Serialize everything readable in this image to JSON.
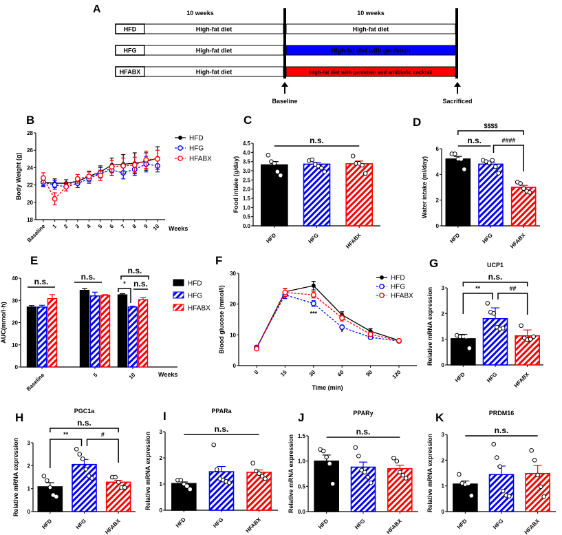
{
  "colors": {
    "HFD": "#000000",
    "HFG": "#0000ff",
    "HFABX": "#ff0000"
  },
  "panelA": {
    "label": "A",
    "period_labels": [
      "10 weeks",
      "10 weeks"
    ],
    "rows": [
      {
        "group": "HFD",
        "phase1": "High-fat diet",
        "phase2": "High-fat diet",
        "fill": "#ffffff",
        "text_color": "#000000"
      },
      {
        "group": "HFG",
        "phase1": "High-fat diet",
        "phase2": "High-fat diet with genistein",
        "fill": "#0000ff",
        "text_color": "#ffffff"
      },
      {
        "group": "HFABX",
        "phase1": "High-fat diet",
        "phase2": "High-fat diet with genistein and antibiotic cocktail",
        "fill": "#ff0000",
        "text_color": "#ffffff"
      }
    ],
    "markers": [
      "Baseline",
      "Sacrificed"
    ]
  },
  "chart_data": [
    {
      "panel": "B",
      "type": "line",
      "title": "",
      "xlabel": "Weeks",
      "ylabel": "Body Weight (g)",
      "categories": [
        "Baseline",
        "1",
        "2",
        "3",
        "4",
        "5",
        "6",
        "7",
        "8",
        "9",
        "10"
      ],
      "ylim": [
        18,
        28
      ],
      "yticks": [
        "18",
        "20",
        "22",
        "24",
        "26",
        "28"
      ],
      "legend": "right",
      "series": [
        {
          "name": "HFD",
          "values": [
            22.3,
            22.2,
            22.2,
            22.4,
            23.0,
            23.5,
            24.3,
            24.4,
            24.5,
            24.7,
            25.1
          ],
          "err": [
            0.4,
            0.5,
            0.4,
            0.4,
            0.5,
            0.7,
            0.8,
            1.1,
            1.2,
            1.0,
            1.3
          ]
        },
        {
          "name": "HFG",
          "values": [
            22.3,
            22.0,
            21.8,
            22.2,
            22.7,
            23.4,
            23.7,
            23.4,
            23.8,
            24.4,
            24.2
          ],
          "err": [
            0.5,
            0.5,
            0.5,
            0.5,
            0.5,
            0.6,
            0.6,
            0.7,
            0.7,
            0.9,
            0.7
          ]
        },
        {
          "name": "HFABX",
          "values": [
            22.8,
            20.4,
            21.8,
            22.7,
            23.0,
            23.1,
            24.1,
            24.2,
            24.3,
            24.9,
            25.0
          ],
          "err": [
            0.6,
            0.7,
            0.5,
            0.5,
            0.6,
            0.6,
            0.7,
            0.9,
            0.9,
            1.0,
            1.0
          ]
        }
      ]
    },
    {
      "panel": "C",
      "type": "bar",
      "title": "",
      "ylabel": "Food intake (g/day)",
      "xlabel": "",
      "categories": [
        "HFD",
        "HFG",
        "HFABX"
      ],
      "ylim": [
        0,
        4.5
      ],
      "yticks": [
        "0.0",
        "0.5",
        "1.0",
        "1.5",
        "2.0",
        "2.5",
        "3.0",
        "3.5",
        "4.0",
        "4.5"
      ],
      "values": [
        3.32,
        3.36,
        3.38
      ],
      "err": [
        0.18,
        0.1,
        0.15
      ],
      "points": [
        [
          3.85,
          3.5,
          3.4,
          2.95,
          2.75
        ],
        [
          3.55,
          3.6,
          3.35,
          3.25,
          3.15,
          2.95
        ],
        [
          3.8,
          3.4,
          3.4,
          3.3,
          2.85
        ]
      ],
      "annotations": [
        {
          "from": 0,
          "to": 2,
          "text": "n.s.",
          "type": "line"
        }
      ]
    },
    {
      "panel": "D",
      "type": "bar",
      "title": "",
      "ylabel": "Water intake (ml/day)",
      "xlabel": "",
      "categories": [
        "HFD",
        "HFG",
        "HFABX"
      ],
      "ylim": [
        0,
        6
      ],
      "yticks": [
        "0",
        "2",
        "4",
        "6"
      ],
      "values": [
        5.2,
        4.8,
        3.0
      ],
      "err": [
        0.2,
        0.15,
        0.15
      ],
      "points": [
        [
          5.6,
          5.6,
          5.2,
          5.2,
          4.4
        ],
        [
          5.1,
          5.0,
          4.9,
          5.1,
          4.6,
          4.1
        ],
        [
          3.4,
          3.3,
          2.9,
          2.7,
          2.6
        ]
      ],
      "annotations": [
        {
          "from": 0,
          "to": 2,
          "text": "$$$$",
          "type": "bracket"
        },
        {
          "from": 0,
          "to": 1,
          "text": "n.s.",
          "type": "line"
        },
        {
          "from": 1,
          "to": 2,
          "text": "####",
          "type": "bracket"
        }
      ]
    },
    {
      "panel": "E",
      "type": "bar",
      "title": "",
      "ylabel": "AUC(mmo/l·h)",
      "xlabel": "Weeks",
      "categories": [
        "Baseline",
        "5",
        "10"
      ],
      "ylim": [
        0,
        40
      ],
      "yticks": [
        "0",
        "10",
        "20",
        "30",
        "40"
      ],
      "legend": "right",
      "series": [
        {
          "name": "HFD",
          "values": [
            27.0,
            34.5,
            32.5
          ],
          "err": [
            0.7,
            0.8,
            0.5
          ]
        },
        {
          "name": "HFG",
          "values": [
            27.0,
            32.0,
            27.0
          ],
          "err": [
            0.8,
            1.7,
            0.4
          ]
        },
        {
          "name": "HFABX",
          "values": [
            30.8,
            32.3,
            30.3
          ],
          "err": [
            1.8,
            0.3,
            0.9
          ]
        }
      ],
      "annotations": [
        {
          "group": "Baseline",
          "text": "n.s."
        },
        {
          "group": "5",
          "text": "n.s."
        },
        {
          "group": "10",
          "text": "n.s.",
          "pair": "HFD-HFABX"
        },
        {
          "group": "10",
          "text": "*",
          "pair": "HFD-HFG"
        },
        {
          "group": "10",
          "text": "n.s.",
          "pair": "HFG-HFABX"
        }
      ]
    },
    {
      "panel": "F",
      "type": "line",
      "title": "",
      "xlabel": "Time (min)",
      "ylabel": "Blood glucose (mmol/l)",
      "categories": [
        "0",
        "15",
        "30",
        "60",
        "90",
        "120"
      ],
      "ylim": [
        0,
        30
      ],
      "yticks": [
        "0",
        "10",
        "20",
        "30"
      ],
      "legend": "top-right",
      "series": [
        {
          "name": "HFD",
          "values": [
            5.7,
            24.0,
            26.0,
            16.5,
            11.2,
            8.2
          ],
          "err": [
            0.3,
            1.0,
            1.4,
            1.0,
            0.8,
            0.4
          ]
        },
        {
          "name": "HFG",
          "values": [
            5.9,
            23.0,
            20.2,
            12.5,
            9.2,
            8.0
          ],
          "err": [
            0.3,
            1.2,
            0.9,
            0.6,
            0.5,
            0.4
          ]
        },
        {
          "name": "HFABX",
          "values": [
            5.5,
            23.8,
            23.0,
            15.5,
            10.2,
            8.1
          ],
          "err": [
            0.3,
            1.3,
            1.0,
            1.0,
            0.7,
            0.5
          ]
        }
      ],
      "annotations": [
        {
          "x": "30",
          "text": "***"
        },
        {
          "x": "60",
          "text": "*"
        }
      ]
    },
    {
      "panel": "G",
      "type": "bar",
      "title": "UCP1",
      "ylabel": "Relative mRNA expression",
      "xlabel": "",
      "categories": [
        "HFD",
        "HFG",
        "HFABX"
      ],
      "ylim": [
        0,
        3
      ],
      "yticks": [
        "0",
        "1",
        "2",
        "3"
      ],
      "values": [
        1.02,
        1.8,
        1.13
      ],
      "err": [
        0.17,
        0.42,
        0.23
      ],
      "points": [
        [
          1.15,
          1.1,
          1.1,
          1.1,
          0.65
        ],
        [
          2.4,
          2.05,
          2.0,
          1.47,
          1.4,
          1.43
        ],
        [
          1.53,
          1.05,
          0.98,
          1.0,
          1.1
        ]
      ],
      "annotations": [
        {
          "from": 0,
          "to": 2,
          "text": "n.s.",
          "type": "bracket"
        },
        {
          "from": 0,
          "to": 1,
          "text": "**",
          "type": "bracket"
        },
        {
          "from": 1,
          "to": 2,
          "text": "##",
          "type": "bracket"
        }
      ]
    },
    {
      "panel": "H",
      "type": "bar",
      "title": "PGC1a",
      "ylabel": "Relative mRNA expression",
      "xlabel": "",
      "categories": [
        "HFD",
        "HFG",
        "HFABX"
      ],
      "ylim": [
        0,
        3
      ],
      "yticks": [
        "0",
        "1",
        "2",
        "3"
      ],
      "values": [
        1.08,
        2.05,
        1.28
      ],
      "err": [
        0.18,
        0.22,
        0.08
      ],
      "points": [
        [
          1.55,
          1.35,
          1.05,
          0.72,
          0.65
        ],
        [
          2.72,
          2.5,
          2.3,
          1.85,
          1.55,
          1.45
        ],
        [
          1.5,
          1.5,
          1.28,
          1.05,
          1.05
        ]
      ],
      "annotations": [
        {
          "from": 0,
          "to": 2,
          "text": "n.s.",
          "type": "bracket"
        },
        {
          "from": 0,
          "to": 1,
          "text": "**",
          "type": "bracket"
        },
        {
          "from": 1,
          "to": 2,
          "text": "#",
          "type": "bracket"
        }
      ]
    },
    {
      "panel": "I",
      "type": "bar",
      "title": "PPARa",
      "ylabel": "Relative mRNA expression",
      "xlabel": "",
      "categories": [
        "HFD",
        "HFG",
        "HFABX"
      ],
      "ylim": [
        0,
        3
      ],
      "yticks": [
        "0",
        "1",
        "2",
        "3"
      ],
      "values": [
        1.02,
        1.47,
        1.45
      ],
      "err": [
        0.06,
        0.2,
        0.09
      ],
      "points": [
        [
          1.15,
          1.15,
          1.0,
          0.92,
          0.8
        ],
        [
          2.5,
          1.55,
          1.2,
          1.15,
          1.1,
          1.05
        ],
        [
          1.8,
          1.5,
          1.4,
          1.3,
          1.2
        ]
      ],
      "annotations": [
        {
          "from": 0,
          "to": 2,
          "text": "n.s.",
          "type": "line"
        }
      ]
    },
    {
      "panel": "J",
      "type": "bar",
      "title": "PPARy",
      "ylabel": "Relative mRNA expression",
      "xlabel": "",
      "categories": [
        "HFD",
        "HFG",
        "HFABX"
      ],
      "ylim": [
        0,
        1.5
      ],
      "yticks": [
        "0.0",
        "0.5",
        "1.0",
        "1.5"
      ],
      "values": [
        1.0,
        0.88,
        0.85
      ],
      "err": [
        0.12,
        0.1,
        0.07
      ],
      "points": [
        [
          1.23,
          1.2,
          1.08,
          0.95,
          0.55
        ],
        [
          1.27,
          1.1,
          0.82,
          0.78,
          0.68,
          0.57
        ],
        [
          1.06,
          1.0,
          0.78,
          0.72,
          0.66
        ]
      ],
      "annotations": [
        {
          "from": 0,
          "to": 2,
          "text": "n.s.",
          "type": "line"
        }
      ]
    },
    {
      "panel": "K",
      "type": "bar",
      "title": "PRDM16",
      "ylabel": "Relative mRNA expression",
      "xlabel": "",
      "categories": [
        "HFD",
        "HFG",
        "HFABX"
      ],
      "ylim": [
        0,
        3
      ],
      "yticks": [
        "0",
        "1",
        "2",
        "3"
      ],
      "values": [
        1.07,
        1.44,
        1.48
      ],
      "err": [
        0.12,
        0.33,
        0.32
      ],
      "points": [
        [
          1.45,
          1.1,
          1.05,
          1.1,
          0.62
        ],
        [
          2.62,
          2.1,
          1.75,
          0.8,
          0.63,
          0.6
        ],
        [
          2.38,
          2.0,
          1.42,
          0.97,
          0.58
        ]
      ],
      "annotations": [
        {
          "from": 0,
          "to": 2,
          "text": "n.s.",
          "type": "line"
        }
      ]
    }
  ]
}
